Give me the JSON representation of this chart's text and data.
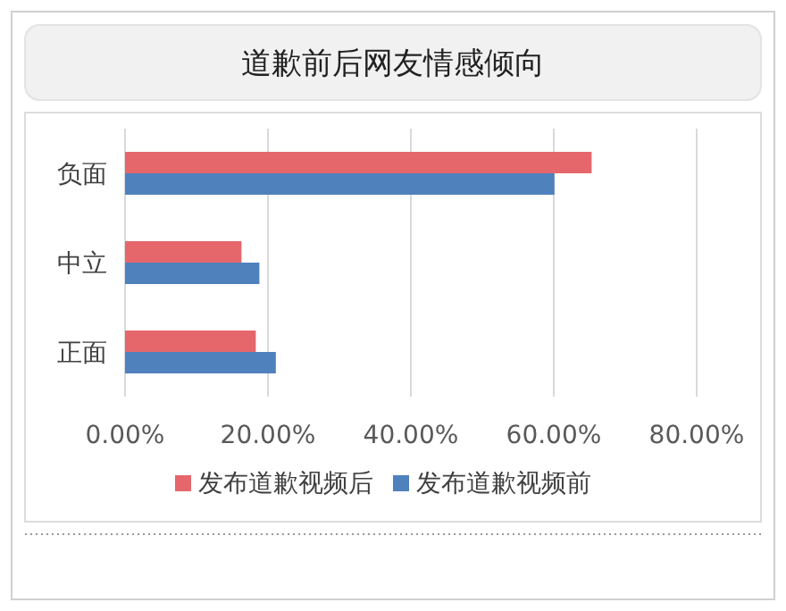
{
  "chart_data": {
    "type": "bar",
    "orientation": "horizontal",
    "title": "道歉前后网友情感倾向",
    "categories": [
      "负面",
      "中立",
      "正面"
    ],
    "series": [
      {
        "name": "发布道歉视频后",
        "color": "#e5676b",
        "values": [
          65.3,
          16.3,
          18.3
        ]
      },
      {
        "name": "发布道歉视频前",
        "color": "#4f81bd",
        "values": [
          60.1,
          18.8,
          21.1
        ]
      }
    ],
    "xlim": [
      0,
      80
    ],
    "xticks": [
      {
        "value": 0,
        "label": "0.00%"
      },
      {
        "value": 20,
        "label": "20.00%"
      },
      {
        "value": 40,
        "label": "40.00%"
      },
      {
        "value": 60,
        "label": "60.00%"
      },
      {
        "value": 80,
        "label": "80.00%"
      }
    ],
    "grid": "x",
    "legend": "bottom"
  }
}
